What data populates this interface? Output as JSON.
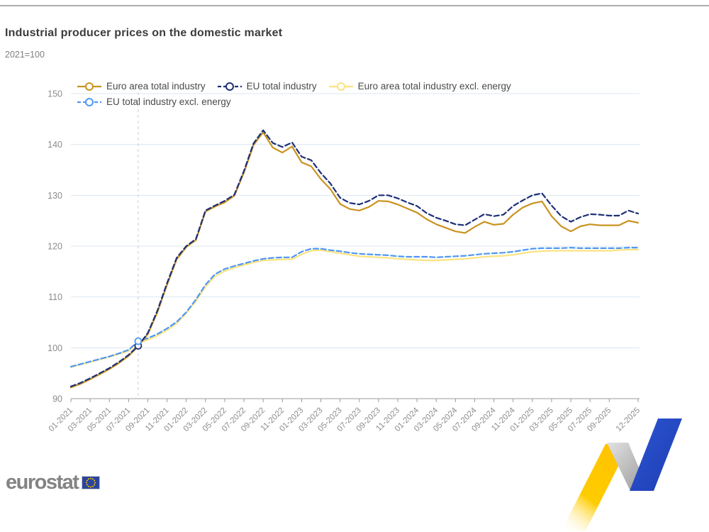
{
  "header": {
    "title": "Industrial producer prices on the domestic market",
    "subtitle": "2021=100"
  },
  "legend": [
    {
      "label": "Euro area total industry",
      "color": "#C9931F",
      "line_style": "solid"
    },
    {
      "label": "EU total industry",
      "color": "#1D3076",
      "line_style": "dashed"
    },
    {
      "label": "Euro area total industry excl. energy",
      "color": "#FAE382",
      "line_style": "solid"
    },
    {
      "label": "EU total industry excl. energy",
      "color": "#4E97F4",
      "line_style": "dashed"
    }
  ],
  "chart_data": {
    "type": "line",
    "title": "Industrial producer prices on the domestic market",
    "subtitle": "2021=100",
    "ylim": [
      90,
      150
    ],
    "yticks": [
      90,
      100,
      110,
      120,
      130,
      140,
      150
    ],
    "grid": "horizontal",
    "legend_position": "top",
    "colors": {
      "gridline": "#dce7f3",
      "axis": "#9b9b9b",
      "tick_label": "#8c8c8c",
      "reference_line": "#cccccc"
    },
    "x_axis": {
      "labels": [
        "01-2021",
        "03-2021",
        "05-2021",
        "07-2021",
        "09-2021",
        "11-2021",
        "01-2022",
        "03-2022",
        "05-2022",
        "07-2022",
        "09-2022",
        "11-2022",
        "01-2023",
        "03-2023",
        "05-2023",
        "07-2023",
        "09-2023",
        "11-2023",
        "01-2024",
        "03-2024",
        "05-2024",
        "07-2024",
        "09-2024",
        "11-2024",
        "01-2025",
        "03-2025",
        "05-2025",
        "07-2025",
        "09-2025",
        "12-2025"
      ],
      "tick_month_indices": [
        0,
        2,
        4,
        6,
        8,
        10,
        12,
        14,
        16,
        18,
        20,
        22,
        24,
        26,
        28,
        30,
        32,
        34,
        36,
        38,
        40,
        42,
        44,
        46,
        48,
        50,
        52,
        54,
        56,
        59
      ]
    },
    "months": [
      "01-2021",
      "02-2021",
      "03-2021",
      "04-2021",
      "05-2021",
      "06-2021",
      "07-2021",
      "08-2021",
      "09-2021",
      "10-2021",
      "11-2021",
      "12-2021",
      "01-2022",
      "02-2022",
      "03-2022",
      "04-2022",
      "05-2022",
      "06-2022",
      "07-2022",
      "08-2022",
      "09-2022",
      "10-2022",
      "11-2022",
      "12-2022",
      "01-2023",
      "02-2023",
      "03-2023",
      "04-2023",
      "05-2023",
      "06-2023",
      "07-2023",
      "08-2023",
      "09-2023",
      "10-2023",
      "11-2023",
      "12-2023",
      "01-2024",
      "02-2024",
      "03-2024",
      "04-2024",
      "05-2024",
      "06-2024",
      "07-2024",
      "08-2024",
      "09-2024",
      "10-2024",
      "11-2024",
      "12-2024",
      "01-2025",
      "02-2025",
      "03-2025",
      "04-2025",
      "05-2025",
      "06-2025",
      "07-2025",
      "08-2025",
      "09-2025",
      "10-2025",
      "11-2025",
      "12-2025"
    ],
    "series": [
      {
        "name": "Euro area total industry excl. energy",
        "color": "#FAE382",
        "line_style": "solid",
        "values": [
          96.2,
          96.7,
          97.2,
          97.7,
          98.2,
          98.8,
          99.4,
          100.9,
          101.6,
          102.4,
          103.5,
          104.8,
          106.8,
          109.2,
          112.0,
          114.1,
          115.1,
          115.8,
          116.3,
          116.8,
          117.2,
          117.3,
          117.4,
          117.4,
          118.4,
          119.1,
          119.2,
          118.9,
          118.6,
          118.3,
          118.0,
          117.9,
          117.8,
          117.7,
          117.5,
          117.4,
          117.3,
          117.2,
          117.2,
          117.3,
          117.4,
          117.5,
          117.7,
          117.9,
          118.0,
          118.1,
          118.3,
          118.6,
          118.9,
          119.0,
          119.1,
          119.1,
          119.1,
          119.1,
          119.1,
          119.1,
          119.1,
          119.2,
          119.3,
          119.3
        ]
      },
      {
        "name": "EU total industry excl. energy",
        "color": "#4E97F4",
        "line_style": "dashed",
        "values": [
          96.3,
          96.8,
          97.3,
          97.8,
          98.3,
          98.9,
          99.6,
          101.3,
          101.9,
          102.7,
          103.8,
          105.1,
          107.0,
          109.5,
          112.4,
          114.5,
          115.5,
          116.1,
          116.6,
          117.1,
          117.5,
          117.7,
          117.8,
          117.8,
          118.9,
          119.5,
          119.5,
          119.2,
          119.0,
          118.7,
          118.5,
          118.4,
          118.3,
          118.2,
          118.0,
          117.9,
          117.9,
          117.9,
          117.8,
          117.9,
          118.0,
          118.1,
          118.3,
          118.5,
          118.6,
          118.7,
          118.9,
          119.2,
          119.5,
          119.6,
          119.6,
          119.6,
          119.7,
          119.6,
          119.6,
          119.6,
          119.6,
          119.6,
          119.7,
          119.7
        ]
      },
      {
        "name": "Euro area total industry",
        "color": "#C9931F",
        "line_style": "solid",
        "values": [
          92.2,
          92.9,
          93.8,
          94.8,
          95.8,
          97.0,
          98.4,
          100.3,
          102.7,
          107.0,
          112.4,
          117.4,
          119.8,
          121.2,
          126.8,
          127.8,
          128.6,
          129.9,
          134.5,
          139.9,
          142.4,
          139.4,
          138.4,
          139.6,
          136.5,
          135.7,
          133.2,
          131.2,
          128.3,
          127.3,
          127.0,
          127.7,
          128.9,
          128.8,
          128.2,
          127.4,
          126.6,
          125.3,
          124.3,
          123.6,
          122.9,
          122.6,
          123.8,
          124.8,
          124.2,
          124.4,
          126.2,
          127.6,
          128.4,
          128.8,
          125.9,
          123.9,
          122.9,
          123.9,
          124.3,
          124.1,
          124.1,
          124.1,
          125.0,
          124.6
        ]
      },
      {
        "name": "EU total industry",
        "color": "#1D3076",
        "line_style": "dashed",
        "values": [
          92.4,
          93.1,
          94.0,
          95.0,
          96.0,
          97.2,
          98.6,
          100.4,
          102.9,
          107.3,
          112.7,
          117.7,
          120.0,
          121.4,
          127.0,
          128.0,
          128.9,
          130.1,
          134.8,
          140.2,
          142.8,
          140.3,
          139.5,
          140.4,
          137.6,
          136.9,
          134.4,
          132.3,
          129.5,
          128.5,
          128.2,
          128.9,
          130.0,
          130.0,
          129.4,
          128.6,
          127.9,
          126.5,
          125.6,
          125.0,
          124.3,
          124.1,
          125.2,
          126.3,
          125.9,
          126.2,
          127.9,
          129.0,
          130.0,
          130.4,
          128.0,
          125.9,
          124.8,
          125.7,
          126.3,
          126.2,
          126.0,
          126.0,
          127.0,
          126.4
        ]
      }
    ],
    "reference_line": {
      "month": "08-2021",
      "month_index": 7
    },
    "markers": [
      {
        "series": "EU total industry",
        "month_index": 7,
        "value": 100.4
      },
      {
        "series": "EU total industry excl. energy",
        "month_index": 7,
        "value": 101.3
      }
    ]
  },
  "footer": {
    "logo_text": "eurostat"
  }
}
